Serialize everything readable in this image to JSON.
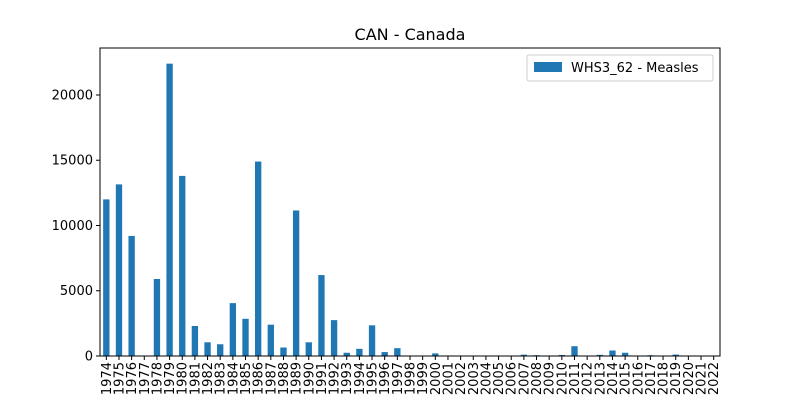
{
  "chart_data": {
    "type": "bar",
    "title": "CAN - Canada",
    "xlabel": "",
    "ylabel": "",
    "ylim": [
      0,
      23600
    ],
    "yticks": [
      0,
      5000,
      10000,
      15000,
      20000
    ],
    "categories": [
      "1974",
      "1975",
      "1976",
      "1977",
      "1978",
      "1979",
      "1980",
      "1981",
      "1982",
      "1983",
      "1984",
      "1985",
      "1986",
      "1987",
      "1988",
      "1989",
      "1990",
      "1991",
      "1992",
      "1993",
      "1994",
      "1995",
      "1996",
      "1997",
      "1998",
      "1999",
      "2000",
      "2001",
      "2002",
      "2003",
      "2004",
      "2005",
      "2006",
      "2007",
      "2008",
      "2009",
      "2010",
      "2011",
      "2012",
      "2013",
      "2014",
      "2015",
      "2016",
      "2017",
      "2018",
      "2019",
      "2020",
      "2021",
      "2022"
    ],
    "series": [
      {
        "name": "WHS3_62 - Measles",
        "color": "#1f77b4",
        "values": [
          12000,
          13150,
          9200,
          0,
          5900,
          22400,
          13800,
          2300,
          1050,
          900,
          4050,
          2850,
          14900,
          2400,
          650,
          11150,
          1050,
          6200,
          2750,
          250,
          550,
          2350,
          300,
          600,
          12,
          20,
          200,
          40,
          12,
          18,
          8,
          12,
          12,
          100,
          60,
          40,
          80,
          750,
          30,
          90,
          420,
          250,
          20,
          60,
          30,
          110,
          5,
          2,
          4
        ]
      }
    ],
    "legend": "top-right",
    "grid": false
  }
}
